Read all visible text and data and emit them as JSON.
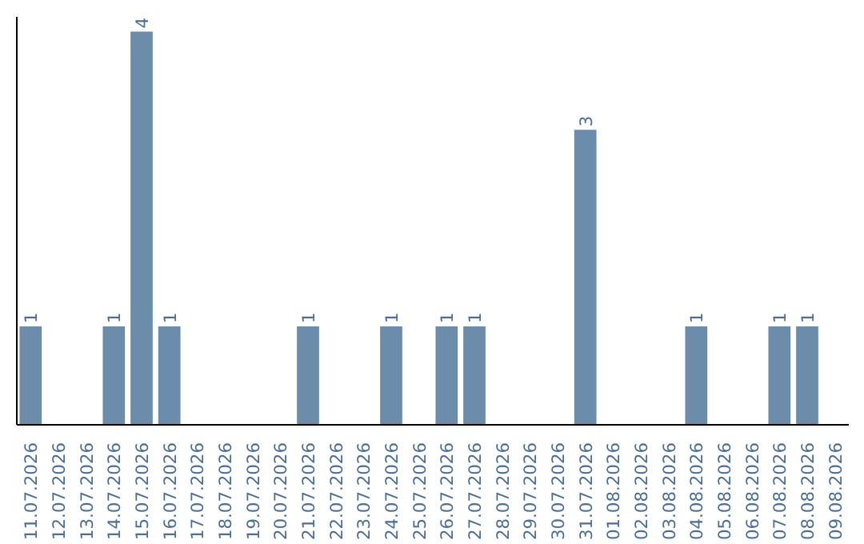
{
  "chart_data": {
    "type": "bar",
    "categories": [
      "11.07.2026",
      "12.07.2026",
      "13.07.2026",
      "14.07.2026",
      "15.07.2026",
      "16.07.2026",
      "17.07.2026",
      "18.07.2026",
      "19.07.2026",
      "20.07.2026",
      "21.07.2026",
      "22.07.2026",
      "23.07.2026",
      "24.07.2026",
      "25.07.2026",
      "26.07.2026",
      "27.07.2026",
      "28.07.2026",
      "29.07.2026",
      "30.07.2026",
      "31.07.2026",
      "01.08.2026",
      "02.08.2026",
      "03.08.2026",
      "04.08.2026",
      "05.08.2026",
      "06.08.2026",
      "07.08.2026",
      "08.08.2026",
      "09.08.2026"
    ],
    "values": [
      1,
      0,
      0,
      1,
      4,
      1,
      0,
      0,
      0,
      0,
      1,
      0,
      0,
      1,
      0,
      1,
      1,
      0,
      0,
      0,
      3,
      0,
      0,
      0,
      1,
      0,
      0,
      1,
      1,
      0
    ],
    "value_labels": [
      "1",
      null,
      null,
      "1",
      "4",
      "1",
      null,
      null,
      null,
      null,
      "1",
      null,
      null,
      "1",
      null,
      "1",
      "1",
      null,
      null,
      null,
      "3",
      null,
      null,
      null,
      "1",
      null,
      null,
      "1",
      "1",
      null
    ],
    "color": "#6b8cab",
    "ylim": [
      0,
      4.15
    ],
    "grid": false
  }
}
